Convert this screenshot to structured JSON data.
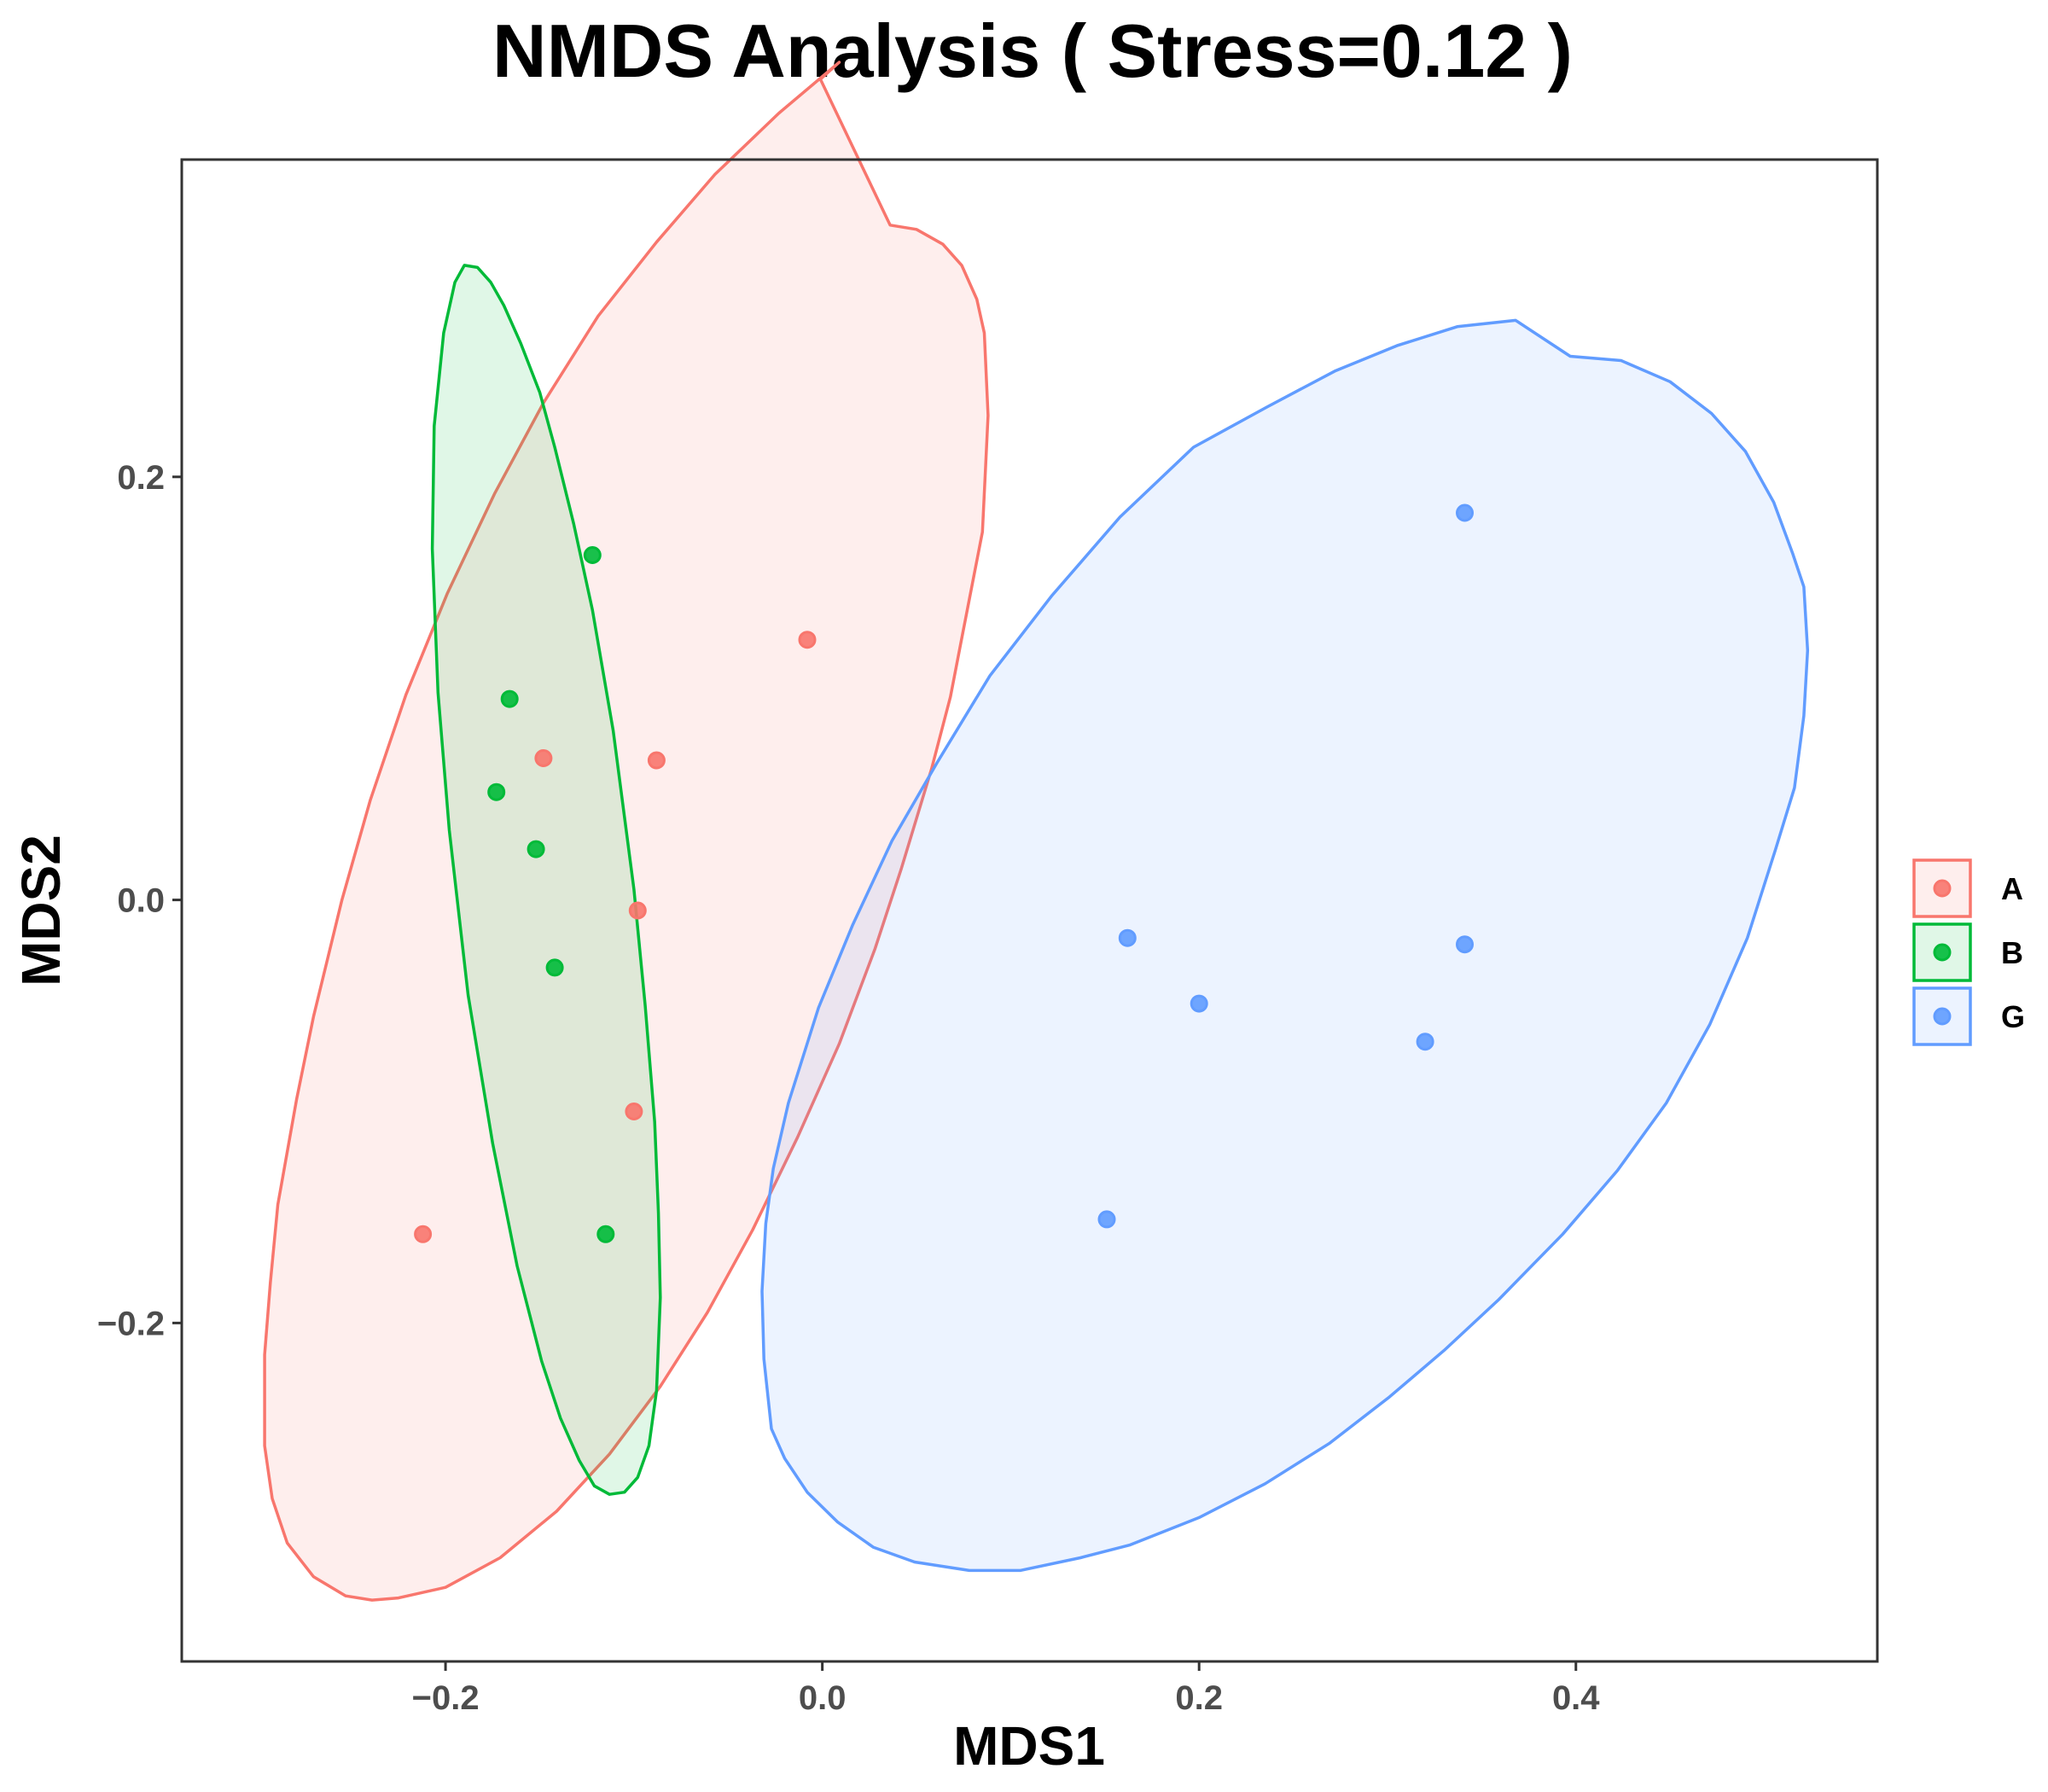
{
  "chart_data": {
    "type": "scatter",
    "title": "NMDS Analysis ( Stress=0.12 )",
    "xlabel": "MDS1",
    "ylabel": "MDS2",
    "xlim": [
      -0.34,
      0.56
    ],
    "ylim": [
      -0.36,
      0.35
    ],
    "x_ticks": [
      {
        "value": -0.2,
        "label": "−0.2"
      },
      {
        "value": 0.0,
        "label": "0.0"
      },
      {
        "value": 0.2,
        "label": "0.2"
      },
      {
        "value": 0.4,
        "label": "0.4"
      }
    ],
    "y_ticks": [
      {
        "value": 0.2,
        "label": "0.2"
      },
      {
        "value": 0.0,
        "label": "0.0"
      },
      {
        "value": -0.2,
        "label": "−0.2"
      }
    ],
    "grid": false,
    "legend_position": "right",
    "series": [
      {
        "name": "A",
        "color": "#F8766D",
        "points": [
          {
            "x": -0.212,
            "y": -0.158
          },
          {
            "x": -0.148,
            "y": 0.067
          },
          {
            "x": -0.088,
            "y": 0.066
          },
          {
            "x": -0.098,
            "y": -0.005
          },
          {
            "x": -0.1,
            "y": -0.1
          },
          {
            "x": -0.008,
            "y": 0.123
          }
        ],
        "ellipse": [
          [
            0.036,
            0.319
          ],
          [
            0.05,
            0.317
          ],
          [
            0.064,
            0.31
          ],
          [
            0.074,
            0.3
          ],
          [
            0.082,
            0.284
          ],
          [
            0.086,
            0.268
          ],
          [
            0.088,
            0.229
          ],
          [
            0.085,
            0.174
          ],
          [
            0.073,
            0.119
          ],
          [
            0.068,
            0.096
          ],
          [
            0.058,
            0.062
          ],
          [
            0.042,
            0.015
          ],
          [
            0.028,
            -0.023
          ],
          [
            0.009,
            -0.068
          ],
          [
            -0.013,
            -0.112
          ],
          [
            -0.037,
            -0.156
          ],
          [
            -0.061,
            -0.195
          ],
          [
            -0.086,
            -0.23
          ],
          [
            -0.113,
            -0.262
          ],
          [
            -0.141,
            -0.289
          ],
          [
            -0.171,
            -0.311
          ],
          [
            -0.2,
            -0.325
          ],
          [
            -0.225,
            -0.33
          ],
          [
            -0.239,
            -0.331
          ],
          [
            -0.253,
            -0.329
          ],
          [
            -0.27,
            -0.32
          ],
          [
            -0.284,
            -0.304
          ],
          [
            -0.292,
            -0.283
          ],
          [
            -0.296,
            -0.258
          ],
          [
            -0.296,
            -0.215
          ],
          [
            -0.293,
            -0.181
          ],
          [
            -0.289,
            -0.144
          ],
          [
            -0.279,
            -0.094
          ],
          [
            -0.27,
            -0.055
          ],
          [
            -0.255,
            0.0
          ],
          [
            -0.24,
            0.047
          ],
          [
            -0.221,
            0.097
          ],
          [
            -0.199,
            0.145
          ],
          [
            -0.174,
            0.192
          ],
          [
            -0.148,
            0.235
          ],
          [
            -0.119,
            0.276
          ],
          [
            -0.088,
            0.311
          ],
          [
            -0.057,
            0.343
          ],
          [
            -0.023,
            0.372
          ],
          [
            0.009,
            0.396
          ],
          [
            -0.001,
            0.388
          ]
        ]
      },
      {
        "name": "B",
        "color": "#00BA38",
        "points": [
          {
            "x": -0.122,
            "y": 0.163
          },
          {
            "x": -0.166,
            "y": 0.095
          },
          {
            "x": -0.173,
            "y": 0.051
          },
          {
            "x": -0.152,
            "y": 0.024
          },
          {
            "x": -0.142,
            "y": -0.032
          },
          {
            "x": -0.115,
            "y": -0.158
          }
        ],
        "ellipse": [
          [
            -0.19,
            0.3
          ],
          [
            -0.183,
            0.299
          ],
          [
            -0.176,
            0.292
          ],
          [
            -0.169,
            0.281
          ],
          [
            -0.16,
            0.263
          ],
          [
            -0.15,
            0.24
          ],
          [
            -0.142,
            0.214
          ],
          [
            -0.132,
            0.178
          ],
          [
            -0.122,
            0.137
          ],
          [
            -0.111,
            0.08
          ],
          [
            -0.1,
            0.005
          ],
          [
            -0.094,
            -0.05
          ],
          [
            -0.089,
            -0.105
          ],
          [
            -0.087,
            -0.148
          ],
          [
            -0.086,
            -0.188
          ],
          [
            -0.088,
            -0.232
          ],
          [
            -0.092,
            -0.258
          ],
          [
            -0.098,
            -0.273
          ],
          [
            -0.105,
            -0.28
          ],
          [
            -0.113,
            -0.281
          ],
          [
            -0.121,
            -0.277
          ],
          [
            -0.129,
            -0.265
          ],
          [
            -0.139,
            -0.245
          ],
          [
            -0.149,
            -0.218
          ],
          [
            -0.162,
            -0.173
          ],
          [
            -0.175,
            -0.115
          ],
          [
            -0.188,
            -0.045
          ],
          [
            -0.198,
            0.033
          ],
          [
            -0.204,
            0.098
          ],
          [
            -0.207,
            0.166
          ],
          [
            -0.206,
            0.224
          ],
          [
            -0.201,
            0.268
          ],
          [
            -0.195,
            0.292
          ]
        ]
      },
      {
        "name": "G",
        "color": "#619CFF",
        "points": [
          {
            "x": 0.341,
            "y": 0.183
          },
          {
            "x": 0.162,
            "y": -0.018
          },
          {
            "x": 0.2,
            "y": -0.049
          },
          {
            "x": 0.341,
            "y": -0.021
          },
          {
            "x": 0.32,
            "y": -0.067
          },
          {
            "x": 0.151,
            "y": -0.151
          }
        ],
        "ellipse": [
          [
            0.397,
            0.257
          ],
          [
            0.424,
            0.255
          ],
          [
            0.45,
            0.245
          ],
          [
            0.472,
            0.23
          ],
          [
            0.49,
            0.212
          ],
          [
            0.505,
            0.188
          ],
          [
            0.515,
            0.164
          ],
          [
            0.521,
            0.148
          ],
          [
            0.523,
            0.118
          ],
          [
            0.521,
            0.087
          ],
          [
            0.516,
            0.053
          ],
          [
            0.506,
            0.024
          ],
          [
            0.491,
            -0.018
          ],
          [
            0.471,
            -0.059
          ],
          [
            0.448,
            -0.096
          ],
          [
            0.422,
            -0.128
          ],
          [
            0.393,
            -0.158
          ],
          [
            0.359,
            -0.189
          ],
          [
            0.33,
            -0.213
          ],
          [
            0.301,
            -0.235
          ],
          [
            0.269,
            -0.257
          ],
          [
            0.235,
            -0.276
          ],
          [
            0.2,
            -0.292
          ],
          [
            0.163,
            -0.305
          ],
          [
            0.137,
            -0.311
          ],
          [
            0.105,
            -0.317
          ],
          [
            0.078,
            -0.317
          ],
          [
            0.049,
            -0.313
          ],
          [
            0.027,
            -0.306
          ],
          [
            0.008,
            -0.294
          ],
          [
            -0.008,
            -0.28
          ],
          [
            -0.02,
            -0.264
          ],
          [
            -0.027,
            -0.25
          ],
          [
            -0.031,
            -0.217
          ],
          [
            -0.032,
            -0.185
          ],
          [
            -0.03,
            -0.153
          ],
          [
            -0.026,
            -0.127
          ],
          [
            -0.018,
            -0.096
          ],
          [
            -0.002,
            -0.051
          ],
          [
            0.016,
            -0.012
          ],
          [
            0.037,
            0.028
          ],
          [
            0.061,
            0.065
          ],
          [
            0.089,
            0.106
          ],
          [
            0.122,
            0.144
          ],
          [
            0.158,
            0.181
          ],
          [
            0.197,
            0.214
          ],
          [
            0.236,
            0.233
          ],
          [
            0.272,
            0.25
          ],
          [
            0.305,
            0.262
          ],
          [
            0.337,
            0.271
          ],
          [
            0.368,
            0.274
          ]
        ]
      }
    ]
  }
}
